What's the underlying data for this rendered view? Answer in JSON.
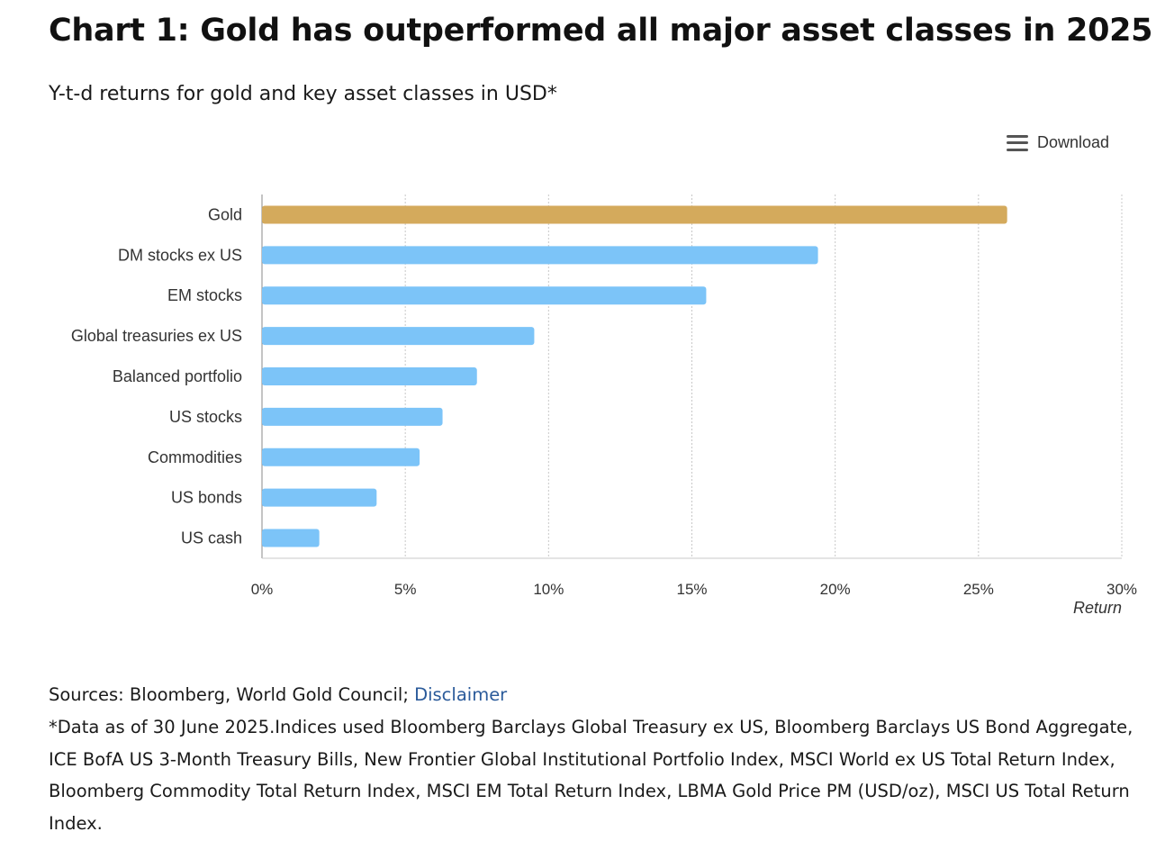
{
  "title": "Chart 1: Gold has outperformed all major asset classes in 2025",
  "subtitle": "Y-t-d returns for gold and key asset classes in USD*",
  "download": {
    "label": "Download",
    "icon": "menu-icon"
  },
  "chart_data": {
    "type": "bar",
    "orientation": "horizontal",
    "categories": [
      "Gold",
      "DM stocks ex US",
      "EM stocks",
      "Global treasuries ex US",
      "Balanced portfolio",
      "US stocks",
      "Commodities",
      "US bonds",
      "US cash"
    ],
    "values": [
      26.0,
      19.4,
      15.5,
      9.5,
      7.5,
      6.3,
      5.5,
      4.0,
      2.0
    ],
    "colors": [
      "#d4aa5c",
      "#7cc4f8",
      "#7cc4f8",
      "#7cc4f8",
      "#7cc4f8",
      "#7cc4f8",
      "#7cc4f8",
      "#7cc4f8",
      "#7cc4f8"
    ],
    "xlabel": "Return",
    "xlim": [
      0,
      30
    ],
    "xticks": [
      "0%",
      "5%",
      "10%",
      "15%",
      "20%",
      "25%",
      "30%"
    ],
    "grid": true
  },
  "footer": {
    "sources_label": "Sources: Bloomberg, World Gold Council; ",
    "disclaimer_link": "Disclaimer",
    "note": "*Data as of 30 June 2025.Indices used Bloomberg Barclays Global Treasury ex US, Bloomberg Barclays US Bond Aggregate, ICE BofA US 3-Month Treasury Bills, New Frontier Global Institutional Portfolio Index, MSCI World ex US Total Return Index, Bloomberg Commodity Total Return Index, MSCI EM Total Return Index, LBMA Gold Price PM (USD/oz), MSCI US Total Return Index."
  }
}
